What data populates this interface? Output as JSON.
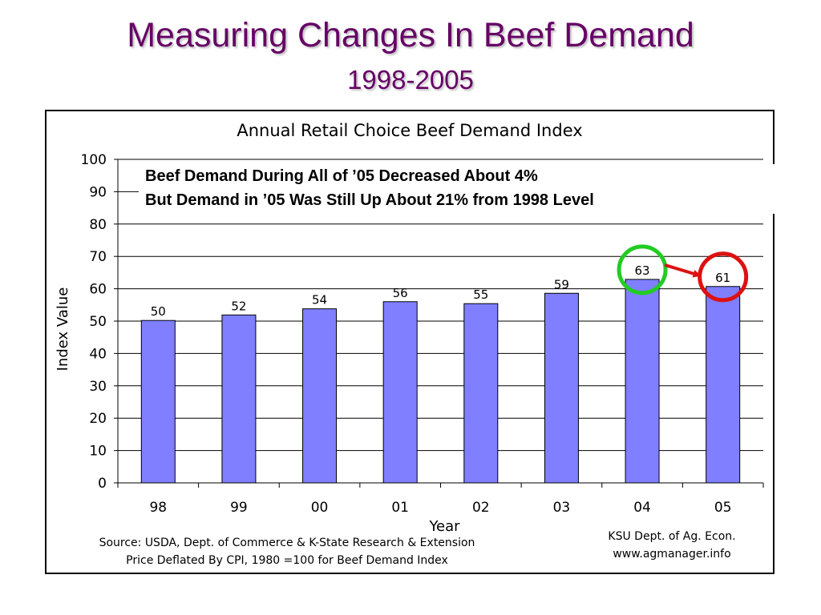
{
  "slide": {
    "title": "Measuring Changes In Beef Demand",
    "subtitle": "1998-2005"
  },
  "annotation": {
    "line1": "Beef Demand During All of ’05 Decreased About 4%",
    "line2": "But Demand in ’05 Was Still Up About 21% from 1998 Level",
    "highlight_colors": {
      "start": "#22cc22",
      "end": "#dd1111",
      "arrow": "#dd1111"
    }
  },
  "footer": {
    "source_line1": "Source: USDA, Dept. of Commerce & K-State Research & Extension",
    "source_line2": "Price Deflated By CPI, 1980 =100 for Beef Demand Index",
    "credit_line1": "KSU Dept. of Ag. Econ.",
    "credit_line2": "www.agmanager.info"
  },
  "chart_data": {
    "type": "bar",
    "title": "Annual Retail Choice Beef Demand Index",
    "xlabel": "Year",
    "ylabel": "Index Value",
    "categories": [
      "98",
      "99",
      "00",
      "01",
      "02",
      "03",
      "04",
      "05"
    ],
    "values": [
      50.2,
      51.9,
      53.8,
      56.0,
      55.4,
      58.6,
      62.9,
      60.7
    ],
    "data_labels": [
      "50",
      "52",
      "54",
      "56",
      "55",
      "59",
      "63",
      "61"
    ],
    "ylim": [
      0,
      100
    ],
    "yticks": [
      0,
      10,
      20,
      30,
      40,
      50,
      60,
      70,
      80,
      90,
      100
    ],
    "grid": true,
    "bar_color": "#7f7fff",
    "highlight": {
      "start_category": "04",
      "end_category": "05"
    }
  }
}
